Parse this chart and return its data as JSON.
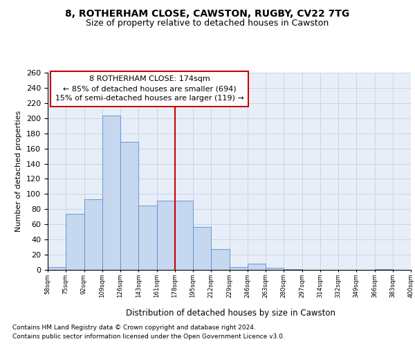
{
  "title1": "8, ROTHERHAM CLOSE, CAWSTON, RUGBY, CV22 7TG",
  "title2": "Size of property relative to detached houses in Cawston",
  "xlabel": "Distribution of detached houses by size in Cawston",
  "ylabel": "Number of detached properties",
  "footnote1": "Contains HM Land Registry data © Crown copyright and database right 2024.",
  "footnote2": "Contains public sector information licensed under the Open Government Licence v3.0.",
  "annotation_line1": "8 ROTHERHAM CLOSE: 174sqm",
  "annotation_line2": "← 85% of detached houses are smaller (694)",
  "annotation_line3": "15% of semi-detached houses are larger (119) →",
  "vline_x": 7,
  "bar_values": [
    4,
    74,
    93,
    203,
    169,
    85,
    91,
    91,
    57,
    27,
    4,
    8,
    3,
    1,
    0,
    0,
    0,
    0,
    1,
    0
  ],
  "bin_labels": [
    "58sqm",
    "75sqm",
    "92sqm",
    "109sqm",
    "126sqm",
    "143sqm",
    "161sqm",
    "178sqm",
    "195sqm",
    "212sqm",
    "229sqm",
    "246sqm",
    "263sqm",
    "280sqm",
    "297sqm",
    "314sqm",
    "332sqm",
    "349sqm",
    "366sqm",
    "383sqm",
    "400sqm"
  ],
  "bar_color": "#c5d8f0",
  "bar_edge_color": "#5b8cc8",
  "vline_color": "#cc0000",
  "grid_color": "#c8d4e8",
  "bg_color": "#e8eef8",
  "ylim": [
    0,
    260
  ],
  "yticks": [
    0,
    20,
    40,
    60,
    80,
    100,
    120,
    140,
    160,
    180,
    200,
    220,
    240,
    260
  ]
}
